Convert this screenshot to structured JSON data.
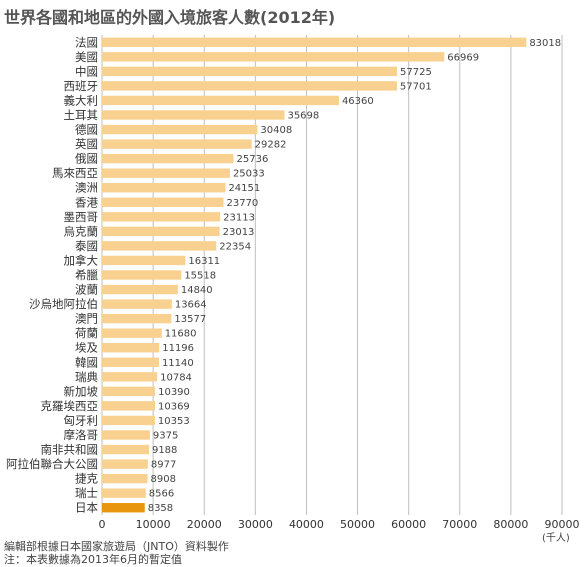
{
  "title": "世界各國和地區的外國入境旅客人數(2012年)",
  "notes": {
    "source": "編輯部根據日本國家旅遊局（JNTO）資料製作",
    "note": "注：本表數據為2013年6月的暫定值"
  },
  "chart_data": {
    "type": "bar",
    "orientation": "horizontal",
    "title": "世界各國和地區的外國入境旅客人數(2012年)",
    "unit": "(千人)",
    "xlim": [
      0,
      90000
    ],
    "xticks": [
      0,
      10000,
      20000,
      30000,
      40000,
      50000,
      60000,
      70000,
      80000,
      90000
    ],
    "grid": true,
    "categories": [
      "法國",
      "美國",
      "中國",
      "西班牙",
      "義大利",
      "土耳其",
      "德國",
      "英國",
      "俄國",
      "馬來西亞",
      "澳洲",
      "香港",
      "墨西哥",
      "烏克蘭",
      "泰國",
      "加拿大",
      "希臘",
      "波蘭",
      "沙烏地阿拉伯",
      "澳門",
      "荷蘭",
      "埃及",
      "韓國",
      "瑞典",
      "新加坡",
      "克羅埃西亞",
      "匈牙利",
      "摩洛哥",
      "南非共和國",
      "阿拉伯聯合大公國",
      "捷克",
      "瑞士",
      "日本"
    ],
    "values": [
      83018,
      66969,
      57725,
      57701,
      46360,
      35698,
      30408,
      29282,
      25736,
      25033,
      24151,
      23770,
      23113,
      23013,
      22354,
      16311,
      15518,
      14840,
      13664,
      13577,
      11680,
      11196,
      11140,
      10784,
      10390,
      10369,
      10353,
      9375,
      9188,
      8977,
      8908,
      8566,
      8358
    ],
    "colors": {
      "bar": "#f8d191",
      "highlight": "#e8960e",
      "grid": "#bfbfbf"
    },
    "highlight_category": "日本"
  }
}
